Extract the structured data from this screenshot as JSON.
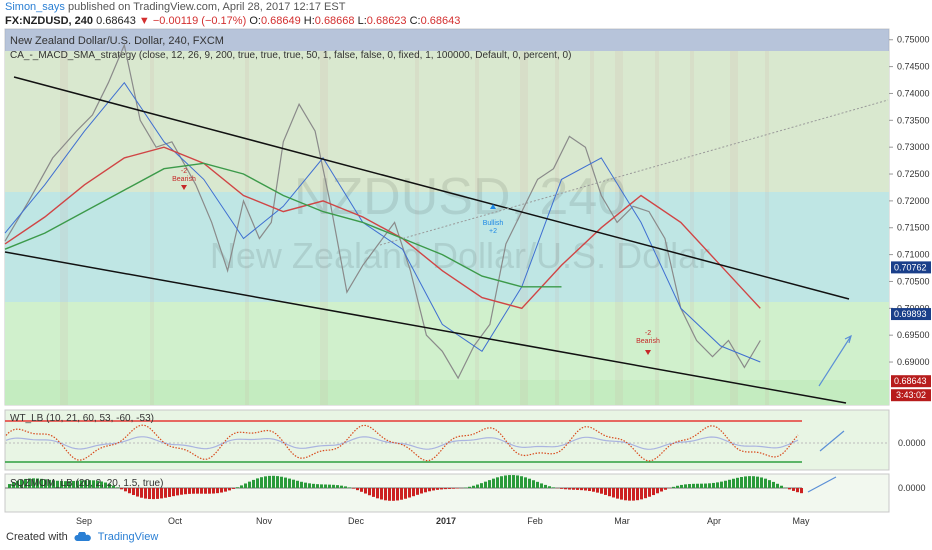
{
  "header": {
    "author": "Simon_says",
    "published": "published on TradingView.com, April 28, 2017 12:17 EST",
    "symbol": "FX:NZDUSD, 240",
    "last": "0.68643",
    "change": "−0.00119 (−0.17%)",
    "open_label": "O:",
    "open": "0.68649",
    "high_label": "H:",
    "high": "0.68668",
    "low_label": "L:",
    "low": "0.68623",
    "close_label": "C:",
    "close": "0.68643"
  },
  "chart_title": "New Zealand Dollar/U.S. Dollar, 240, FXCM",
  "indicator": "CA_-_MACD_SMA_strategy (close, 12, 26, 9, 200, true, true, true, 50, 1, false, false, 0, fixed, 1, 100000, Default, 0, percent, 0)",
  "watermark": {
    "symbol": "NZDUSD, 240",
    "name": "New Zealand Dollar/U.S. Dollar"
  },
  "wt_label": "WT_LB (10, 21, 60, 53, -60, -53)",
  "sqz_label": "SQZMOM_LB (20, 2, 20, 1.5, true)",
  "signals": [
    {
      "text1": "-2",
      "text2": "Bearish"
    },
    {
      "text1": "Bullish",
      "text2": "+2"
    },
    {
      "text1": "-2",
      "text2": "Bearish"
    }
  ],
  "countdown": "3:43:02",
  "footer": {
    "created_with": "Created with",
    "brand": "TradingView"
  },
  "colors": {
    "price": "#8a8a8a",
    "ema_fast": "#3f6fd1",
    "ema_mid": "#d04545",
    "sma200": "#3c9a4a",
    "wt1": "#d84a1c",
    "wt2": "#aab4e0",
    "bear": "#cc2020",
    "bull": "#2a9a3a"
  },
  "chart_data": {
    "type": "line",
    "title": "New Zealand Dollar/U.S. Dollar, 240, FXCM",
    "x_ticks": [
      "Sep",
      "Oct",
      "Nov",
      "Dec",
      "2017",
      "Feb",
      "Mar",
      "Apr",
      "May"
    ],
    "y_ticks": [
      "0.75000",
      "0.74500",
      "0.74000",
      "0.73500",
      "0.73000",
      "0.72500",
      "0.72000",
      "0.71500",
      "0.71000",
      "0.70500",
      "0.70000",
      "0.69500",
      "0.69000"
    ],
    "y_ticks_values": [
      0.75,
      0.745,
      0.74,
      0.735,
      0.73,
      0.725,
      0.72,
      0.715,
      0.71,
      0.705,
      0.7,
      0.695,
      0.69
    ],
    "ylim": [
      0.682,
      0.752
    ],
    "price_labels": [
      "0.70762",
      "0.69893",
      "0.68643"
    ],
    "price_labels_values": [
      0.70762,
      0.69893,
      0.68643
    ],
    "series": [
      {
        "name": "price",
        "x": [
          0,
          0.03,
          0.06,
          0.09,
          0.11,
          0.13,
          0.15,
          0.17,
          0.19,
          0.21,
          0.225,
          0.24,
          0.26,
          0.28,
          0.3,
          0.32,
          0.335,
          0.35,
          0.37,
          0.39,
          0.41,
          0.43,
          0.45,
          0.47,
          0.49,
          0.51,
          0.53,
          0.55,
          0.57,
          0.59,
          0.61,
          0.63,
          0.65,
          0.67,
          0.69,
          0.71,
          0.73,
          0.75,
          0.77,
          0.79,
          0.81,
          0.83,
          0.85,
          0.87,
          0.89,
          0.91,
          0.93,
          0.95
        ],
        "y": [
          0.7125,
          0.72,
          0.728,
          0.733,
          0.736,
          0.742,
          0.749,
          0.735,
          0.73,
          0.731,
          0.727,
          0.723,
          0.716,
          0.707,
          0.72,
          0.713,
          0.716,
          0.731,
          0.738,
          0.733,
          0.719,
          0.703,
          0.708,
          0.712,
          0.716,
          0.707,
          0.695,
          0.692,
          0.687,
          0.693,
          0.697,
          0.712,
          0.718,
          0.724,
          0.726,
          0.732,
          0.73,
          0.721,
          0.716,
          0.719,
          0.718,
          0.713,
          0.7,
          0.694,
          0.691,
          0.694,
          0.689,
          0.694
        ]
      },
      {
        "name": "fast MA",
        "x": [
          0,
          0.05,
          0.1,
          0.15,
          0.2,
          0.25,
          0.3,
          0.35,
          0.4,
          0.45,
          0.5,
          0.55,
          0.6,
          0.65,
          0.7,
          0.75,
          0.8,
          0.85,
          0.9,
          0.95
        ],
        "y": [
          0.714,
          0.723,
          0.733,
          0.742,
          0.731,
          0.724,
          0.713,
          0.719,
          0.728,
          0.716,
          0.711,
          0.697,
          0.692,
          0.704,
          0.724,
          0.728,
          0.716,
          0.7,
          0.693,
          0.69
        ]
      },
      {
        "name": "mid MA",
        "x": [
          0,
          0.05,
          0.1,
          0.15,
          0.2,
          0.25,
          0.3,
          0.35,
          0.4,
          0.45,
          0.5,
          0.55,
          0.6,
          0.65,
          0.7,
          0.75,
          0.8,
          0.85,
          0.9,
          0.95
        ],
        "y": [
          0.712,
          0.717,
          0.723,
          0.728,
          0.73,
          0.727,
          0.721,
          0.718,
          0.72,
          0.717,
          0.713,
          0.707,
          0.702,
          0.7,
          0.708,
          0.715,
          0.721,
          0.716,
          0.708,
          0.7
        ]
      },
      {
        "name": "200 SMA",
        "x": [
          0,
          0.05,
          0.1,
          0.15,
          0.2,
          0.25,
          0.3,
          0.35,
          0.4,
          0.45,
          0.5,
          0.55,
          0.6,
          0.65,
          0.7
        ],
        "y": [
          0.711,
          0.714,
          0.718,
          0.722,
          0.726,
          0.727,
          0.725,
          0.721,
          0.718,
          0.716,
          0.713,
          0.71,
          0.706,
          0.704,
          0.704
        ]
      }
    ]
  }
}
